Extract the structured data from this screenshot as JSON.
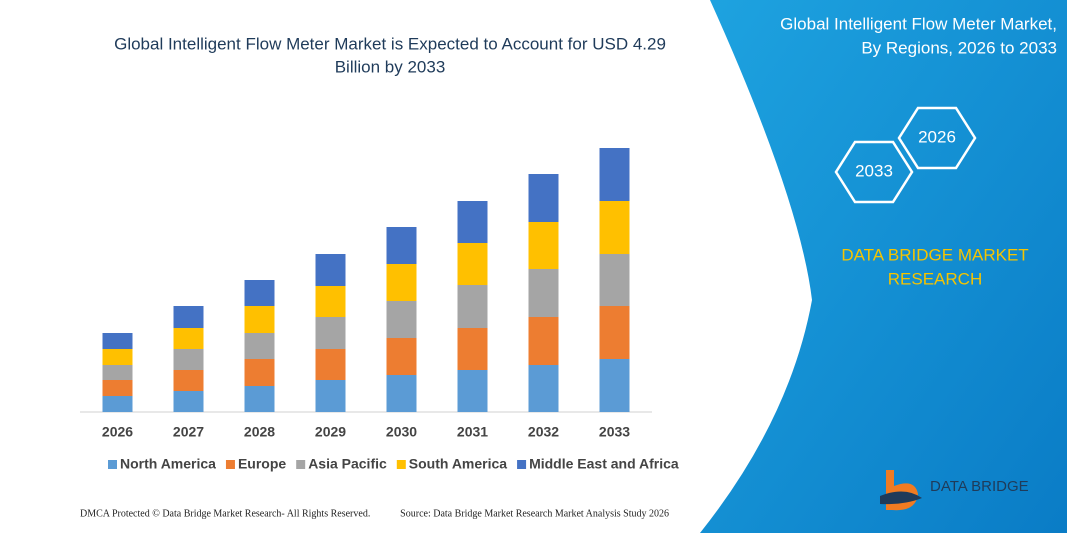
{
  "chart_data": {
    "type": "stacked_bar",
    "title": [
      "Global Intelligent Flow Meter Market is Expected to Account for USD 4.29",
      "Billion by 2033"
    ],
    "categories": [
      "2026",
      "2027",
      "2028",
      "2029",
      "2030",
      "2031",
      "2032",
      "2033"
    ],
    "series": [
      {
        "name": "North America",
        "color": "#5b9bd5",
        "values": [
          16,
          21,
          26,
          32,
          37,
          42,
          47,
          53
        ]
      },
      {
        "name": "Europe",
        "color": "#ed7d31",
        "values": [
          16,
          21,
          27,
          31,
          37,
          42,
          48,
          53
        ]
      },
      {
        "name": "Asia Pacific",
        "color": "#a5a5a5",
        "values": [
          15,
          21,
          26,
          32,
          37,
          43,
          48,
          52
        ]
      },
      {
        "name": "South America",
        "color": "#ffc000",
        "values": [
          16,
          21,
          27,
          31,
          37,
          42,
          47,
          53
        ]
      },
      {
        "name": "Middle East and Africa",
        "color": "#4472c4",
        "values": [
          16,
          22,
          26,
          32,
          37,
          42,
          48,
          53
        ]
      }
    ],
    "ylim": [
      0,
      280
    ],
    "legend": "bottom"
  },
  "side_panel": {
    "title": [
      "Global Intelligent Flow Meter Market,",
      "By Regions, 2026 to 2033"
    ],
    "hexagons": [
      "2026",
      "2033"
    ],
    "brand": [
      "DATA BRIDGE MARKET",
      "RESEARCH"
    ],
    "logo": "DATA BRIDGE"
  },
  "footer": {
    "left": "DMCA Protected © Data Bridge Market Research-  All Rights Reserved.",
    "right": "Source: Data Bridge Market Research  Market Analysis Study 2026"
  }
}
